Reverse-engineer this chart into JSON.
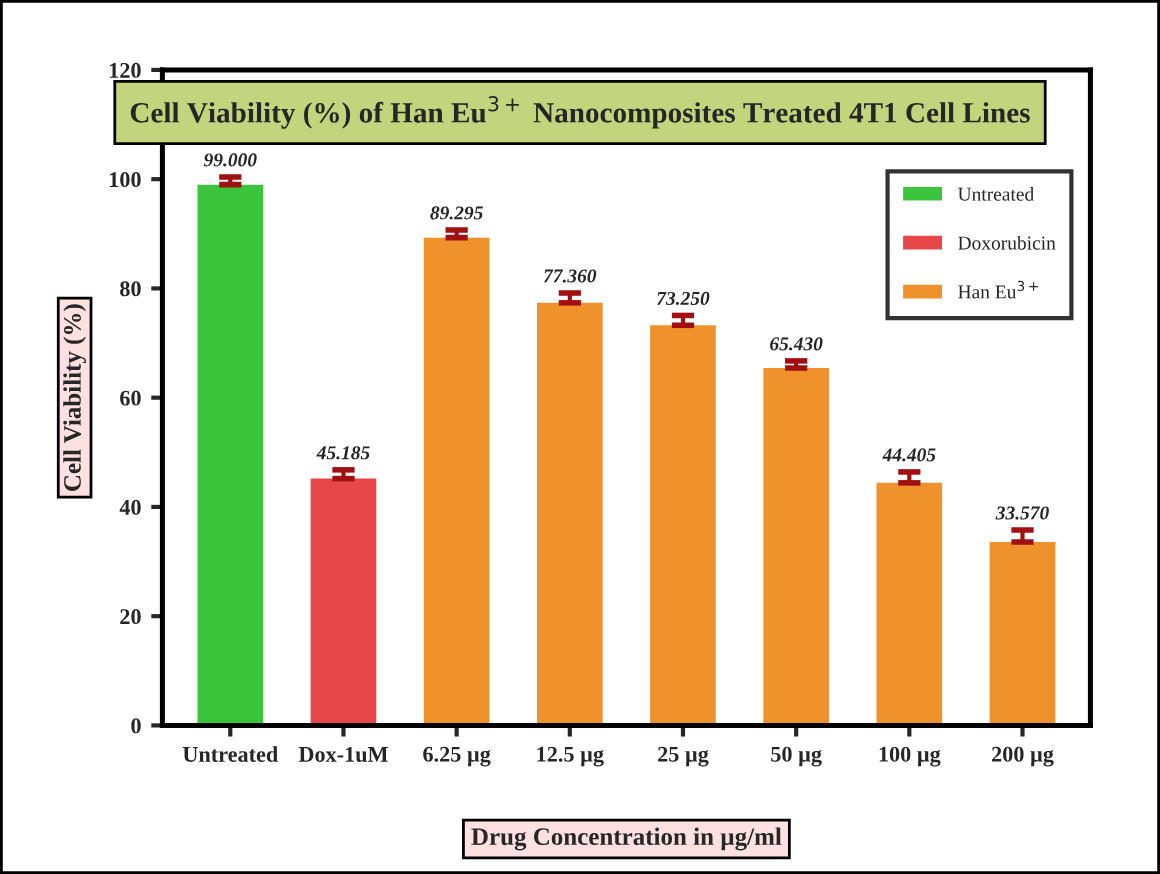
{
  "chart_data": {
    "type": "bar",
    "title": "Cell Viability (%) of Han Eu$^{3+}$ Nanocomposites Treated 4T1 Cell Lines",
    "xlabel": "Drug Concentration in µg/ml",
    "ylabel": "Cell Viability (%)",
    "categories": [
      "Untreated",
      "Dox-1uM",
      "6.25 µg",
      "12.5 µg",
      "25 µg",
      "50 µg",
      "100 µg",
      "200 µg"
    ],
    "series": [
      {
        "name": "Untreated",
        "color": "#3cc43c",
        "values": [
          99.0,
          null,
          null,
          null,
          null,
          null,
          null,
          null
        ],
        "errors": [
          1.4,
          null,
          null,
          null,
          null,
          null,
          null,
          null
        ],
        "value_labels": [
          "99.000",
          null,
          null,
          null,
          null,
          null,
          null,
          null
        ]
      },
      {
        "name": "Doxorubicin",
        "color": "#e8474a",
        "values": [
          null,
          45.185,
          null,
          null,
          null,
          null,
          null,
          null
        ],
        "errors": [
          null,
          1.6,
          null,
          null,
          null,
          null,
          null,
          null
        ],
        "value_labels": [
          null,
          "45.185",
          null,
          null,
          null,
          null,
          null,
          null
        ]
      },
      {
        "name": "Han Eu$^{3+}$",
        "color": "#f0922c",
        "values": [
          null,
          null,
          89.295,
          77.36,
          73.25,
          65.43,
          44.405,
          33.57
        ],
        "errors": [
          null,
          null,
          1.4,
          1.8,
          1.8,
          1.3,
          2.0,
          2.2
        ],
        "value_labels": [
          null,
          null,
          "89.295",
          "77.360",
          "73.250",
          "65.430",
          "44.405",
          "33.570"
        ]
      }
    ],
    "ylim": [
      0,
      120
    ],
    "yticks": [
      0,
      20,
      40,
      60,
      80,
      100,
      120
    ],
    "grid": false,
    "legend": "top right"
  }
}
